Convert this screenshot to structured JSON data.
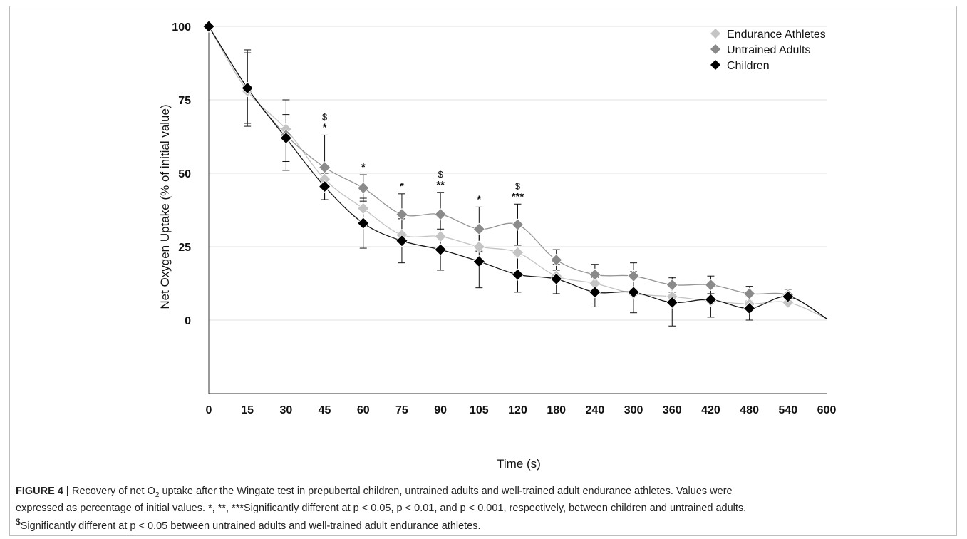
{
  "chart_data": {
    "type": "scatter",
    "xlabel": "Time (s)",
    "ylabel": "Net Oxygen Uptake  (% of initial value)",
    "x_ticks": [
      "0",
      "15",
      "30",
      "45",
      "60",
      "75",
      "90",
      "105",
      "120",
      "180",
      "240",
      "300",
      "360",
      "420",
      "480",
      "540",
      "600"
    ],
    "y_ticks": [
      "100",
      "75",
      "50",
      "25",
      "0"
    ],
    "ylim": [
      -25,
      100
    ],
    "grid": "horizontal",
    "legend_position": "top-right",
    "series": [
      {
        "name": "Endurance Athletes",
        "color": "#c4c4c4",
        "x": [
          0,
          15,
          30,
          45,
          60,
          75,
          90,
          105,
          120,
          180,
          240,
          300,
          360,
          420,
          480,
          540
        ],
        "y": [
          100,
          78,
          65,
          48,
          38,
          29,
          28.5,
          25,
          23,
          15,
          12.5,
          9,
          8,
          6.5,
          5.5,
          6
        ]
      },
      {
        "name": "Untrained Adults",
        "color": "#8a8a8a",
        "x": [
          0,
          15,
          30,
          45,
          60,
          75,
          90,
          105,
          120,
          180,
          240,
          300,
          360,
          420,
          480,
          540
        ],
        "y": [
          100,
          79,
          63,
          52,
          45,
          36,
          36,
          31,
          32.5,
          20.5,
          15.5,
          15,
          12,
          12,
          9,
          8.5
        ],
        "error": [
          0,
          12,
          12,
          11,
          4.5,
          7,
          7.5,
          7.5,
          7,
          3.5,
          3.5,
          4.5,
          2.5,
          3,
          2.5,
          2
        ]
      },
      {
        "name": "Children",
        "color": "#000000",
        "x": [
          0,
          15,
          30,
          45,
          60,
          75,
          90,
          105,
          120,
          180,
          240,
          300,
          360,
          420,
          480,
          540
        ],
        "y": [
          100,
          79,
          62,
          45.5,
          33,
          27,
          24,
          20,
          15.5,
          14,
          9.5,
          9.5,
          6,
          7,
          4,
          8
        ],
        "error": [
          0,
          13,
          8,
          4.5,
          8.5,
          7.5,
          7,
          9,
          6,
          5,
          5,
          7,
          8,
          6,
          4,
          2.5
        ]
      }
    ],
    "annotations": [
      {
        "x": "45",
        "lines": [
          "$",
          "*"
        ]
      },
      {
        "x": "60",
        "lines": [
          "*"
        ]
      },
      {
        "x": "75",
        "lines": [
          "*"
        ]
      },
      {
        "x": "90",
        "lines": [
          "$",
          "**"
        ]
      },
      {
        "x": "105",
        "lines": [
          "*"
        ]
      },
      {
        "x": "120",
        "lines": [
          "$",
          "***"
        ]
      }
    ]
  },
  "caption": {
    "label": "FIGURE 4 |",
    "line1_pre": " Recovery of net O",
    "line1_sub": "2",
    "line1_post": " uptake after the Wingate test in prepubertal children, untrained adults and well-trained adult endurance athletes. Values were",
    "line2": "expressed as percentage of initial values. *, **, ***Significantly different at p < 0.05, p < 0.01, and p < 0.001, respectively, between children and untrained adults.",
    "line3_sup": "$",
    "line3": "Significantly different at p < 0.05 between untrained adults and well-trained adult endurance athletes."
  }
}
